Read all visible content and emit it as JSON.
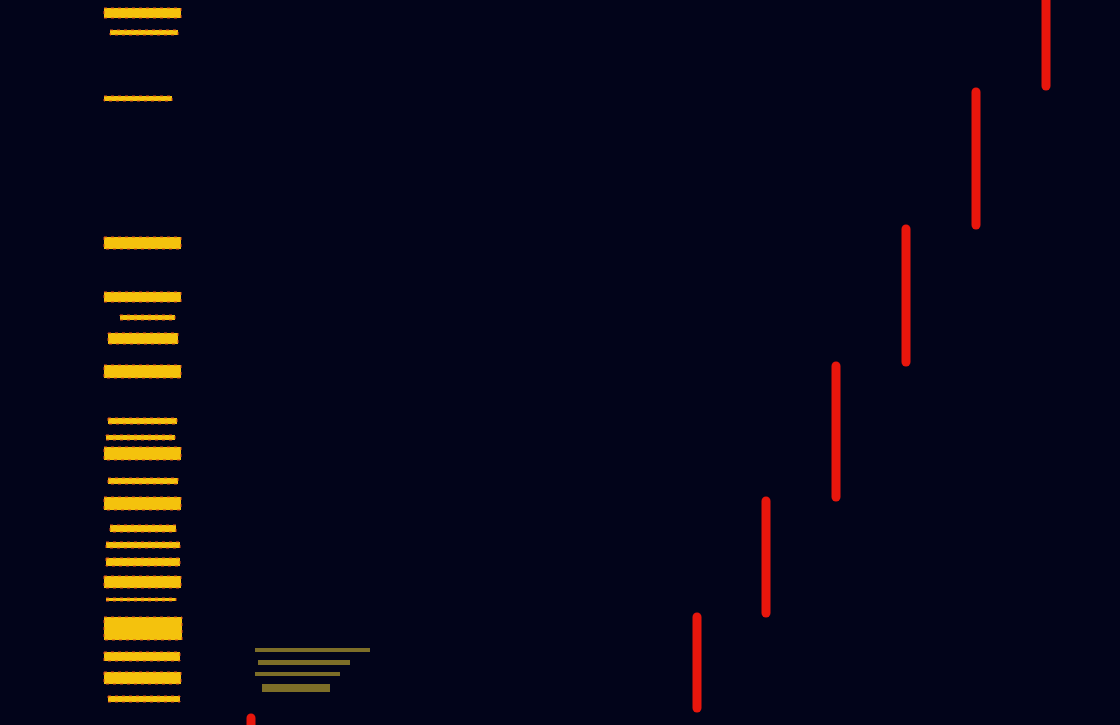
{
  "chart_data": {
    "type": "spectrogram",
    "xlim": [
      0,
      1120
    ],
    "ylim": [
      0,
      725
    ],
    "tick_labels": false,
    "grid": false,
    "bands": {
      "color": "#f4c20d",
      "cells": [
        {
          "x0": 104,
          "x1": 181,
          "y0": 707,
          "y1": 717
        },
        {
          "x0": 110,
          "x1": 178,
          "y0": 690,
          "y1": 695
        },
        {
          "x0": 104,
          "x1": 172,
          "y0": 624,
          "y1": 629
        },
        {
          "x0": 104,
          "x1": 181,
          "y0": 476,
          "y1": 488
        },
        {
          "x0": 104,
          "x1": 181,
          "y0": 423,
          "y1": 433
        },
        {
          "x0": 120,
          "x1": 175,
          "y0": 405,
          "y1": 410
        },
        {
          "x0": 108,
          "x1": 178,
          "y0": 381,
          "y1": 392
        },
        {
          "x0": 104,
          "x1": 181,
          "y0": 347,
          "y1": 360
        },
        {
          "x0": 108,
          "x1": 177,
          "y0": 301,
          "y1": 307
        },
        {
          "x0": 106,
          "x1": 175,
          "y0": 285,
          "y1": 290
        },
        {
          "x0": 104,
          "x1": 181,
          "y0": 265,
          "y1": 278
        },
        {
          "x0": 108,
          "x1": 178,
          "y0": 241,
          "y1": 247
        },
        {
          "x0": 104,
          "x1": 181,
          "y0": 215,
          "y1": 228
        },
        {
          "x0": 110,
          "x1": 176,
          "y0": 193,
          "y1": 200
        },
        {
          "x0": 106,
          "x1": 180,
          "y0": 177,
          "y1": 183
        },
        {
          "x0": 106,
          "x1": 180,
          "y0": 159,
          "y1": 167
        },
        {
          "x0": 104,
          "x1": 181,
          "y0": 137,
          "y1": 149
        },
        {
          "x0": 106,
          "x1": 176,
          "y0": 124,
          "y1": 127
        },
        {
          "x0": 104,
          "x1": 182,
          "y0": 85,
          "y1": 108
        },
        {
          "x0": 104,
          "x1": 180,
          "y0": 64,
          "y1": 73
        },
        {
          "x0": 104,
          "x1": 181,
          "y0": 41,
          "y1": 53
        },
        {
          "x0": 108,
          "x1": 180,
          "y0": 23,
          "y1": 29
        }
      ]
    },
    "weak_bands": {
      "color": "#9c8a2c",
      "cells": [
        {
          "x0": 255,
          "x1": 370,
          "y0": 73,
          "y1": 77
        },
        {
          "x0": 258,
          "x1": 350,
          "y0": 60,
          "y1": 65
        },
        {
          "x0": 255,
          "x1": 340,
          "y0": 49,
          "y1": 53
        },
        {
          "x0": 262,
          "x1": 330,
          "y0": 33,
          "y1": 41
        }
      ]
    },
    "segments": {
      "color": "#e8160c",
      "cells": [
        {
          "x": 251,
          "y0": 0,
          "y1": 7
        },
        {
          "x": 697,
          "y0": 17,
          "y1": 108
        },
        {
          "x": 766,
          "y0": 112,
          "y1": 224
        },
        {
          "x": 836,
          "y0": 228,
          "y1": 359
        },
        {
          "x": 906,
          "y0": 363,
          "y1": 496
        },
        {
          "x": 976,
          "y0": 500,
          "y1": 633
        },
        {
          "x": 1046,
          "y0": 639,
          "y1": 725
        }
      ]
    }
  }
}
